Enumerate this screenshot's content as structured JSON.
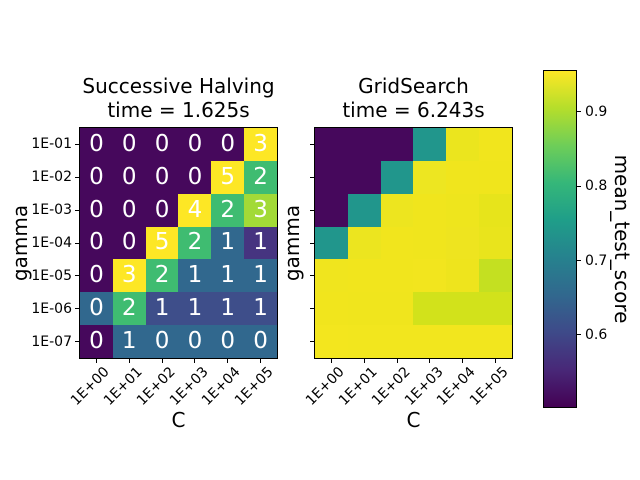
{
  "figure": {
    "background": "#ffffff",
    "text_color": "#000000",
    "annotation_color": "#ffffff"
  },
  "chart_data": [
    {
      "type": "heatmap",
      "title_line1": "Successive Halving",
      "title_line2": "time = 1.625s",
      "xlabel": "C",
      "ylabel": "gamma",
      "x_ticks": [
        "1E+00",
        "1E+01",
        "1E+02",
        "1E+03",
        "1E+04",
        "1E+05"
      ],
      "y_ticks": [
        "1E-01",
        "1E-02",
        "1E-03",
        "1E-04",
        "1E-05",
        "1E-06",
        "1E-07"
      ],
      "annotations": [
        [
          "0",
          "0",
          "0",
          "0",
          "0",
          "3"
        ],
        [
          "0",
          "0",
          "0",
          "0",
          "5",
          "2"
        ],
        [
          "0",
          "0",
          "0",
          "4",
          "2",
          "3"
        ],
        [
          "0",
          "0",
          "5",
          "2",
          "1",
          "1"
        ],
        [
          "0",
          "3",
          "2",
          "1",
          "1",
          "1"
        ],
        [
          "0",
          "2",
          "1",
          "1",
          "1",
          "1"
        ],
        [
          "0",
          "1",
          "0",
          "0",
          "0",
          "0"
        ]
      ],
      "cell_colors": [
        [
          "#46085c",
          "#46085c",
          "#46085c",
          "#46085c",
          "#46085c",
          "#fde725"
        ],
        [
          "#46085c",
          "#46085c",
          "#46085c",
          "#46085c",
          "#fde725",
          "#3fbc71"
        ],
        [
          "#46085c",
          "#46085c",
          "#46085c",
          "#fde725",
          "#3fbc71",
          "#a2da37"
        ],
        [
          "#46085c",
          "#46085c",
          "#fde725",
          "#3fbc71",
          "#31688e",
          "#463480"
        ],
        [
          "#46085c",
          "#fde725",
          "#3fbc71",
          "#31688e",
          "#31688e",
          "#31688e"
        ],
        [
          "#31688e",
          "#3fbc71",
          "#3e4e8a",
          "#3e4e8a",
          "#3e4e8a",
          "#3e4e8a"
        ],
        [
          "#46085c",
          "#31688e",
          "#31688e",
          "#31688e",
          "#31688e",
          "#31688e"
        ]
      ],
      "scores_estimated": [
        [
          0.5,
          0.5,
          0.5,
          0.5,
          0.5,
          0.95
        ],
        [
          0.5,
          0.5,
          0.5,
          0.5,
          0.95,
          0.8
        ],
        [
          0.5,
          0.5,
          0.5,
          0.95,
          0.8,
          0.89
        ],
        [
          0.5,
          0.5,
          0.95,
          0.8,
          0.64,
          0.57
        ],
        [
          0.5,
          0.95,
          0.8,
          0.64,
          0.64,
          0.64
        ],
        [
          0.64,
          0.8,
          0.61,
          0.61,
          0.61,
          0.61
        ],
        [
          0.5,
          0.64,
          0.64,
          0.64,
          0.64,
          0.64
        ]
      ]
    },
    {
      "type": "heatmap",
      "title_line1": "GridSearch",
      "title_line2": "time = 6.243s",
      "xlabel": "C",
      "ylabel": "gamma",
      "x_ticks": [
        "1E+00",
        "1E+01",
        "1E+02",
        "1E+03",
        "1E+04",
        "1E+05"
      ],
      "y_ticks": [
        "1E-01",
        "1E-02",
        "1E-03",
        "1E-04",
        "1E-05",
        "1E-06",
        "1E-07"
      ],
      "annotations": null,
      "cell_colors": [
        [
          "#46085c",
          "#46085c",
          "#46085c",
          "#21968c",
          "#ebe51e",
          "#f1e51d"
        ],
        [
          "#46085c",
          "#46085c",
          "#21968c",
          "#ede621",
          "#f0e51d",
          "#f0e51c"
        ],
        [
          "#46085c",
          "#21968c",
          "#ede51f",
          "#f0e51d",
          "#eee51d",
          "#e7e41b"
        ],
        [
          "#21968c",
          "#ece51f",
          "#f1e51d",
          "#f0e51d",
          "#eee41f",
          "#e9e41c"
        ],
        [
          "#f0e51e",
          "#f1e51d",
          "#f1e51d",
          "#f2e51e",
          "#eee41d",
          "#c4e021"
        ],
        [
          "#f1e51d",
          "#f0e51d",
          "#f0e51d",
          "#d2e21b",
          "#d2e21b",
          "#d2e21b"
        ],
        [
          "#f3e61e",
          "#f2e61e",
          "#f2e61e",
          "#f2e61e",
          "#f2e61e",
          "#f2e61e"
        ]
      ],
      "scores_estimated": [
        [
          0.5,
          0.5,
          0.5,
          0.73,
          0.94,
          0.95
        ],
        [
          0.5,
          0.5,
          0.73,
          0.95,
          0.95,
          0.95
        ],
        [
          0.5,
          0.73,
          0.95,
          0.95,
          0.95,
          0.94
        ],
        [
          0.73,
          0.95,
          0.95,
          0.95,
          0.94,
          0.94
        ],
        [
          0.95,
          0.95,
          0.95,
          0.95,
          0.94,
          0.91
        ],
        [
          0.95,
          0.95,
          0.95,
          0.92,
          0.92,
          0.92
        ],
        [
          0.95,
          0.95,
          0.95,
          0.95,
          0.95,
          0.95
        ]
      ]
    }
  ],
  "colorbar": {
    "label": "mean_test_score",
    "tick_labels": [
      "0.9",
      "0.8",
      "0.7",
      "0.6"
    ],
    "tick_values": [
      0.9,
      0.8,
      0.7,
      0.6
    ],
    "vmin": 0.503,
    "vmax": 0.955,
    "colormap": "viridis",
    "gradient_stops": [
      "#440154",
      "#482878",
      "#3e4a89",
      "#31688e",
      "#26828e",
      "#1f9e89",
      "#35b779",
      "#6ece58",
      "#b5de2b",
      "#fde725"
    ]
  }
}
